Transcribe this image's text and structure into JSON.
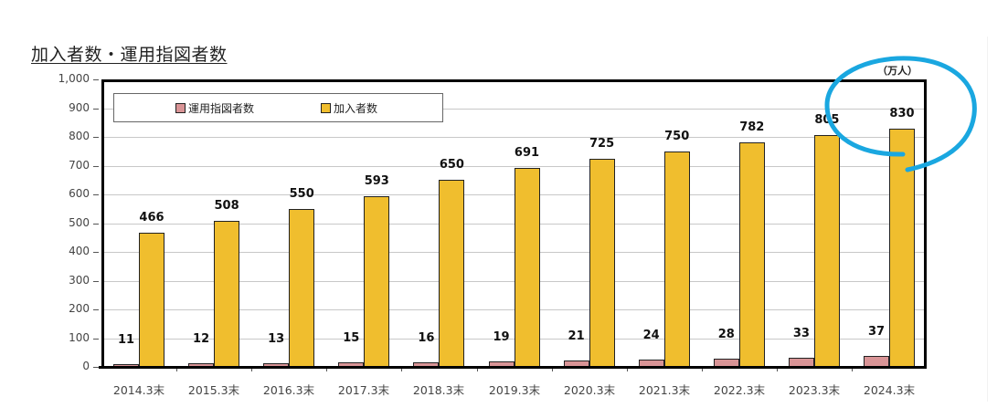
{
  "page": {
    "title": "加入者数・運用指図者数",
    "unit_label": "（万人）"
  },
  "chart_data": {
    "type": "bar",
    "title": "加入者数・運用指図者数",
    "unit": "（万人）",
    "xlabel": "",
    "ylabel": "",
    "ylim": [
      0,
      1000
    ],
    "yticks": [
      "0",
      "100",
      "200",
      "300",
      "400",
      "500",
      "600",
      "700",
      "800",
      "900",
      "1,000"
    ],
    "grid": true,
    "legend_position": "top-left inside",
    "categories": [
      "2014.3末",
      "2015.3末",
      "2016.3末",
      "2017.3末",
      "2018.3末",
      "2019.3末",
      "2020.3末",
      "2021.3末",
      "2022.3末",
      "2023.3末",
      "2024.3末"
    ],
    "series": [
      {
        "name": "運用指図者数",
        "color": "#d99496",
        "values": [
          11,
          12,
          13,
          15,
          16,
          19,
          21,
          24,
          28,
          33,
          37
        ]
      },
      {
        "name": "加入者数",
        "color": "#f0be2e",
        "values": [
          466,
          508,
          550,
          593,
          650,
          691,
          725,
          750,
          782,
          805,
          830
        ]
      }
    ],
    "annotations": [
      {
        "type": "hand-drawn circle",
        "color": "#1aa7e0",
        "target": "2024.3末 加入者数 830"
      }
    ]
  }
}
